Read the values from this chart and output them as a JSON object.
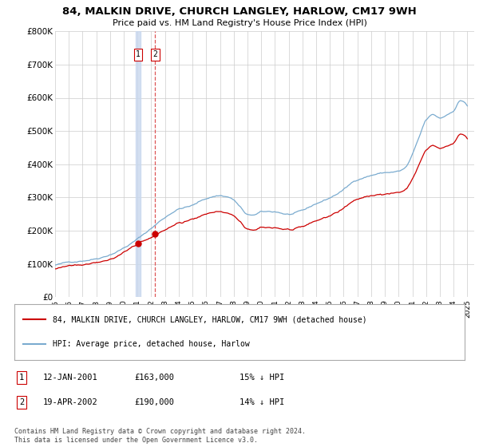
{
  "title": "84, MALKIN DRIVE, CHURCH LANGLEY, HARLOW, CM17 9WH",
  "subtitle": "Price paid vs. HM Land Registry's House Price Index (HPI)",
  "legend_red": "84, MALKIN DRIVE, CHURCH LANGLEY, HARLOW, CM17 9WH (detached house)",
  "legend_blue": "HPI: Average price, detached house, Harlow",
  "transaction1_date": "12-JAN-2001",
  "transaction1_price": "£163,000",
  "transaction1_hpi": "15% ↓ HPI",
  "transaction2_date": "19-APR-2002",
  "transaction2_price": "£190,000",
  "transaction2_hpi": "14% ↓ HPI",
  "footnote": "Contains HM Land Registry data © Crown copyright and database right 2024.\nThis data is licensed under the Open Government Licence v3.0.",
  "red_color": "#cc0000",
  "blue_color": "#7aabcf",
  "vline1_color": "#c8d8ee",
  "vline2_color": "#dd5555",
  "background_color": "#ffffff",
  "grid_color": "#cccccc",
  "ylim": [
    0,
    800000
  ],
  "yticks": [
    0,
    100000,
    200000,
    300000,
    400000,
    500000,
    600000,
    700000,
    800000
  ],
  "ytick_labels": [
    "£0",
    "£100K",
    "£200K",
    "£300K",
    "£400K",
    "£500K",
    "£600K",
    "£700K",
    "£800K"
  ],
  "transaction1_x": 2001.04,
  "transaction2_x": 2002.29,
  "transaction1_y": 163000,
  "transaction2_y": 190000,
  "xlim_left": 1995.0,
  "xlim_right": 2025.5
}
